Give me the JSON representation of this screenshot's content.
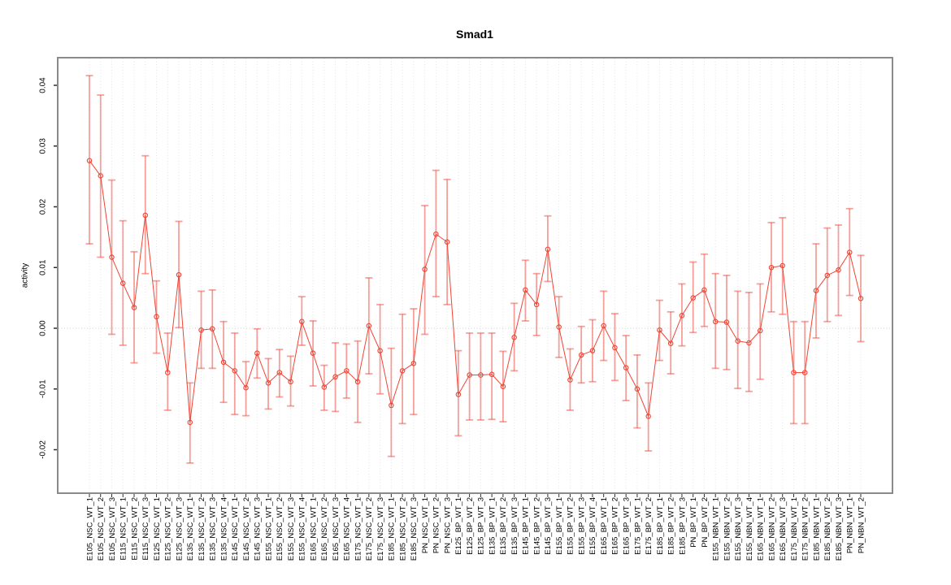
{
  "chart_data": {
    "type": "line",
    "title": "Smad1",
    "ylabel": "activity",
    "xlabel": "",
    "legend": "none",
    "marker": "open-circle",
    "error_bars": true,
    "grid": "vertical dotted line per category; horizontal dotted line at y=0",
    "ylim": [
      -0.0272,
      0.0444
    ],
    "yticks": [
      -0.02,
      -0.01,
      0.0,
      0.01,
      0.02,
      0.03,
      0.04
    ],
    "ytick_labels": [
      "-0.02",
      "-0.01",
      "0.00",
      "0.01",
      "0.02",
      "0.03",
      "0.04"
    ],
    "colors": {
      "series": "#ef4434",
      "error_bar": "rgba(240,70,58,0.5)",
      "gridline": "#e4e4e4",
      "zero_line": "#cfcfcf",
      "frame": "#8a8a8a",
      "text": "#000000",
      "background": "#ffffff"
    },
    "categories": [
      "E105_NSC_WT_1",
      "E105_NSC_WT_2",
      "E105_NSC_WT_3",
      "E115_NSC_WT_1",
      "E115_NSC_WT_2",
      "E115_NSC_WT_3",
      "E125_NSC_WT_1",
      "E125_NSC_WT_2",
      "E125_NSC_WT_3",
      "E135_NSC_WT_1",
      "E135_NSC_WT_2",
      "E135_NSC_WT_3",
      "E135_NSC_WT_4",
      "E145_NSC_WT_1",
      "E145_NSC_WT_2",
      "E145_NSC_WT_3",
      "E155_NSC_WT_1",
      "E155_NSC_WT_2",
      "E155_NSC_WT_3",
      "E155_NSC_WT_4",
      "E165_NSC_WT_1",
      "E165_NSC_WT_2",
      "E165_NSC_WT_3",
      "E165_NSC_WT_4",
      "E175_NSC_WT_1",
      "E175_NSC_WT_2",
      "E175_NSC_WT_3",
      "E185_NSC_WT_1",
      "E185_NSC_WT_2",
      "E185_NSC_WT_3",
      "PN_NSC_WT_1",
      "PN_NSC_WT_2",
      "PN_NSC_WT_3",
      "E125_BP_WT_1",
      "E125_BP_WT_2",
      "E125_BP_WT_3",
      "E135_BP_WT_1",
      "E135_BP_WT_2",
      "E135_BP_WT_3",
      "E145_BP_WT_1",
      "E145_BP_WT_2",
      "E145_BP_WT_3",
      "E155_BP_WT_1",
      "E155_BP_WT_2",
      "E155_BP_WT_3",
      "E155_BP_WT_4",
      "E165_BP_WT_1",
      "E165_BP_WT_2",
      "E165_BP_WT_3",
      "E175_BP_WT_1",
      "E175_BP_WT_2",
      "E185_BP_WT_1",
      "E185_BP_WT_2",
      "E185_BP_WT_3",
      "PN_BP_WT_1",
      "PN_BP_WT_2",
      "E155_NBN_WT_1",
      "E155_NBN_WT_2",
      "E155_NBN_WT_3",
      "E155_NBN_WT_4",
      "E165_NBN_WT_1",
      "E165_NBN_WT_2",
      "E165_NBN_WT_3",
      "E175_NBN_WT_1",
      "E175_NBN_WT_2",
      "E185_NBN_WT_1",
      "E185_NBN_WT_2",
      "E185_NBN_WT_3",
      "PN_NBN_WT_1",
      "PN_NBN_WT_2"
    ],
    "series": [
      {
        "name": "Smad1 activity",
        "values": [
          0.0276,
          0.0251,
          0.0117,
          0.0074,
          0.0034,
          0.0186,
          0.0019,
          -0.0073,
          0.0088,
          -0.0155,
          -0.0003,
          -0.0001,
          -0.0056,
          -0.007,
          -0.0098,
          -0.0041,
          -0.009,
          -0.0073,
          -0.0088,
          0.0011,
          -0.0041,
          -0.0097,
          -0.008,
          -0.007,
          -0.0088,
          0.0004,
          -0.0037,
          -0.0127,
          -0.007,
          -0.0058,
          0.0097,
          0.0155,
          0.0142,
          -0.0109,
          -0.0077,
          -0.0077,
          -0.0076,
          -0.0096,
          -0.0015,
          0.0063,
          0.0039,
          0.013,
          0.0002,
          -0.0085,
          -0.0044,
          -0.0037,
          0.0004,
          -0.0032,
          -0.0065,
          -0.01,
          -0.0145,
          -0.0003,
          -0.0025,
          0.0021,
          0.005,
          0.0063,
          0.0011,
          0.001,
          -0.0021,
          -0.0024,
          -0.0004,
          0.01,
          0.0103,
          -0.0073,
          -0.0073,
          0.0062,
          0.0087,
          0.0096,
          0.0125,
          0.0049
        ],
        "err_lo": [
          0.0139,
          0.0117,
          -0.001,
          -0.0028,
          -0.0057,
          0.009,
          -0.0041,
          -0.0135,
          0.0001,
          -0.0222,
          -0.0066,
          -0.0066,
          -0.0122,
          -0.0142,
          -0.0144,
          -0.0082,
          -0.0133,
          -0.0113,
          -0.0128,
          -0.0028,
          -0.0095,
          -0.0135,
          -0.0137,
          -0.0115,
          -0.0155,
          -0.0075,
          -0.0108,
          -0.0211,
          -0.0157,
          -0.0142,
          -0.001,
          0.0052,
          0.0039,
          -0.0177,
          -0.0151,
          -0.0151,
          -0.015,
          -0.0154,
          -0.007,
          0.0012,
          -0.0012,
          0.0077,
          -0.0048,
          -0.0135,
          -0.009,
          -0.0088,
          -0.0053,
          -0.0086,
          -0.0119,
          -0.0164,
          -0.0202,
          -0.0053,
          -0.0075,
          -0.0029,
          -0.0007,
          0.0003,
          -0.0066,
          -0.0068,
          -0.0099,
          -0.0104,
          -0.0084,
          0.0027,
          0.0023,
          -0.0157,
          -0.0157,
          -0.0016,
          0.0011,
          0.0021,
          0.0054,
          -0.0022
        ],
        "err_hi": [
          0.0416,
          0.0384,
          0.0244,
          0.0177,
          0.0126,
          0.0284,
          0.0078,
          -0.0008,
          0.0176,
          -0.009,
          0.0061,
          0.0063,
          0.0011,
          -0.0008,
          -0.0055,
          -0.0001,
          -0.005,
          -0.0035,
          -0.0046,
          0.0052,
          0.0012,
          -0.0061,
          -0.0024,
          -0.0026,
          -0.0021,
          0.0083,
          0.0039,
          -0.0033,
          0.0023,
          0.0032,
          0.0202,
          0.026,
          0.0245,
          -0.0037,
          -0.0008,
          -0.0008,
          -0.0008,
          -0.0038,
          0.0041,
          0.0112,
          0.009,
          0.0185,
          0.0052,
          -0.0034,
          0.0003,
          0.0014,
          0.0061,
          0.0024,
          -0.0012,
          -0.0044,
          -0.009,
          0.0046,
          0.0027,
          0.0073,
          0.0109,
          0.0122,
          0.009,
          0.0087,
          0.0061,
          0.0059,
          0.0073,
          0.0174,
          0.0182,
          0.0011,
          0.0011,
          0.0139,
          0.0165,
          0.017,
          0.0197,
          0.012
        ]
      }
    ]
  }
}
